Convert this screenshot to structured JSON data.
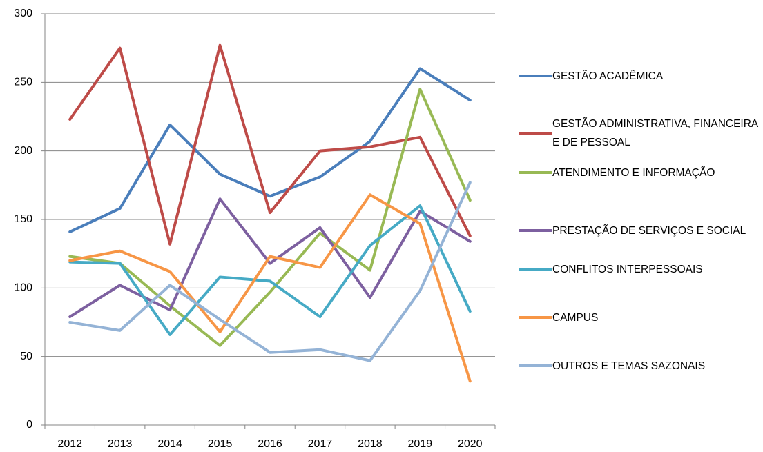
{
  "chart_data": {
    "type": "line",
    "categories": [
      "2012",
      "2013",
      "2014",
      "2015",
      "2016",
      "2017",
      "2018",
      "2019",
      "2020"
    ],
    "ylim": [
      0,
      300
    ],
    "yticks": [
      0,
      50,
      100,
      150,
      200,
      250,
      300
    ],
    "grid": true,
    "legend": "right",
    "series": [
      {
        "name": "GESTÃO ACADÊMICA",
        "color": "#4a7ebb",
        "values": [
          141,
          158,
          219,
          183,
          167,
          181,
          207,
          260,
          237
        ]
      },
      {
        "name": "GESTÃO ADMINISTRATIVA, FINANCEIRA E DE PESSOAL",
        "color": "#be4b48",
        "values": [
          223,
          275,
          132,
          277,
          155,
          200,
          203,
          210,
          138
        ]
      },
      {
        "name": "ATENDIMENTO E INFORMAÇÃO",
        "color": "#98b954",
        "values": [
          123,
          118,
          87,
          58,
          97,
          140,
          113,
          245,
          164
        ]
      },
      {
        "name": "PRESTAÇÃO DE SERVIÇOS E SOCIAL",
        "color": "#7d60a0",
        "values": [
          79,
          102,
          84,
          165,
          118,
          144,
          93,
          156,
          134
        ]
      },
      {
        "name": "CONFLITOS INTERPESSOAIS",
        "color": "#46aac5",
        "values": [
          119,
          118,
          66,
          108,
          105,
          79,
          131,
          160,
          83
        ]
      },
      {
        "name": "CAMPUS",
        "color": "#f79646",
        "values": [
          120,
          127,
          112,
          68,
          123,
          115,
          168,
          147,
          32
        ]
      },
      {
        "name": "OUTROS E TEMAS SAZONAIS",
        "color": "#94b3d6",
        "values": [
          75,
          69,
          102,
          77,
          53,
          55,
          47,
          98,
          177
        ]
      }
    ]
  }
}
